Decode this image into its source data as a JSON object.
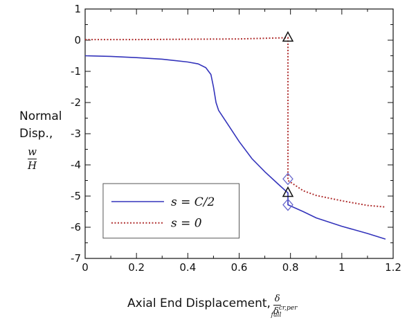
{
  "chart_data": {
    "type": "line",
    "xlim": [
      0,
      1.2
    ],
    "ylim": [
      -7,
      1
    ],
    "x_ticks": [
      "0",
      "0.2",
      "0.4",
      "0.6",
      "0.8",
      "1",
      "1.2"
    ],
    "y_ticks": [
      "1",
      "0",
      "-1",
      "-2",
      "-3",
      "-4",
      "-5",
      "-6",
      "-7"
    ],
    "ylabel": {
      "line1": "Normal",
      "line2": "Disp.,",
      "frac_num": "w",
      "frac_den": "H"
    },
    "xlabel": {
      "text": "Axial End Displacement,",
      "frac_num": "δ",
      "frac_den": "δ",
      "den_sup": "cr,per",
      "den_sub": "full"
    },
    "grid": false,
    "legend_position": "bottom-left",
    "series": [
      {
        "name": "s = C/2",
        "color": "#3333bb",
        "style": "solid",
        "points": [
          [
            0,
            -0.5
          ],
          [
            0.1,
            -0.52
          ],
          [
            0.2,
            -0.56
          ],
          [
            0.3,
            -0.61
          ],
          [
            0.4,
            -0.7
          ],
          [
            0.44,
            -0.76
          ],
          [
            0.47,
            -0.88
          ],
          [
            0.49,
            -1.1
          ],
          [
            0.5,
            -1.5
          ],
          [
            0.51,
            -2.0
          ],
          [
            0.52,
            -2.25
          ],
          [
            0.56,
            -2.75
          ],
          [
            0.6,
            -3.25
          ],
          [
            0.65,
            -3.8
          ],
          [
            0.7,
            -4.22
          ],
          [
            0.75,
            -4.6
          ],
          [
            0.79,
            -4.9
          ],
          [
            0.79,
            -5.28
          ],
          [
            0.85,
            -5.5
          ],
          [
            0.9,
            -5.7
          ],
          [
            1.0,
            -5.97
          ],
          [
            1.1,
            -6.2
          ],
          [
            1.17,
            -6.38
          ]
        ]
      },
      {
        "name": "s = 0",
        "color": "#b03030",
        "style": "dotted",
        "points": [
          [
            0,
            0.02
          ],
          [
            0.2,
            0.02
          ],
          [
            0.4,
            0.03
          ],
          [
            0.6,
            0.04
          ],
          [
            0.79,
            0.08
          ],
          [
            0.79,
            -4.5
          ],
          [
            0.85,
            -4.83
          ],
          [
            0.9,
            -4.98
          ],
          [
            1.0,
            -5.15
          ],
          [
            1.1,
            -5.3
          ],
          [
            1.17,
            -5.35
          ]
        ]
      }
    ],
    "markers": [
      {
        "shape": "triangle",
        "x": 0.79,
        "y": 0.08,
        "color": "#111111"
      },
      {
        "shape": "triangle",
        "x": 0.79,
        "y": -4.9,
        "color": "#111111"
      },
      {
        "shape": "diamond",
        "x": 0.79,
        "y": -4.45,
        "color": "#6666cc"
      },
      {
        "shape": "diamond",
        "x": 0.79,
        "y": -5.28,
        "color": "#6666cc"
      }
    ]
  }
}
